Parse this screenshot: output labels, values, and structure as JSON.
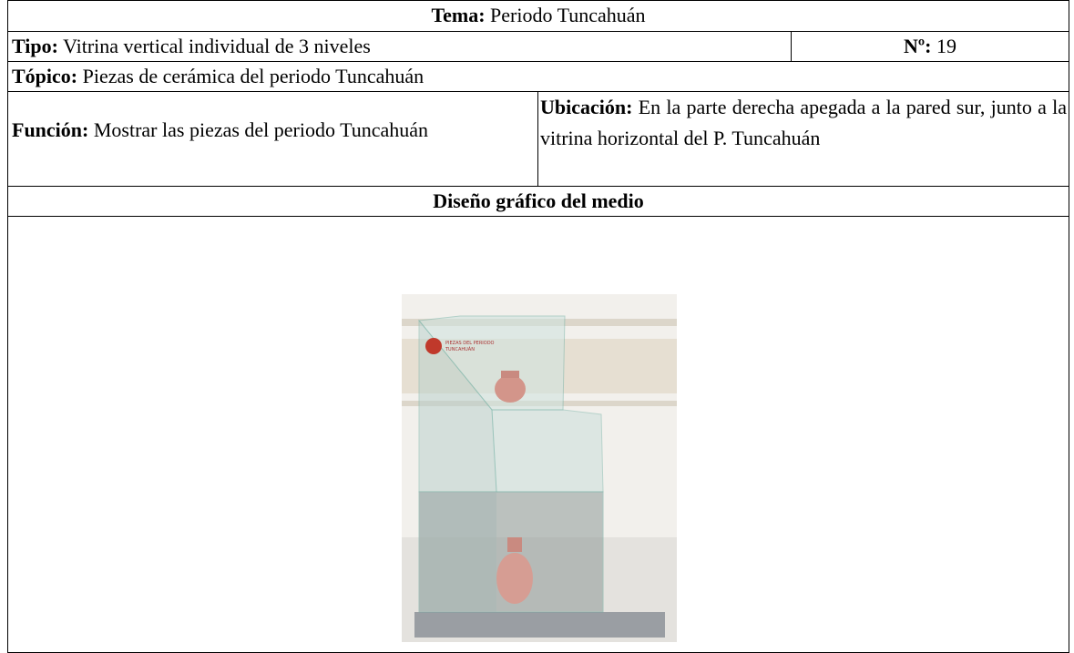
{
  "tema": {
    "label": "Tema:",
    "text": "Periodo Tuncahuán"
  },
  "tipo": {
    "label": "Tipo:",
    "text": "Vitrina vertical individual de 3 niveles"
  },
  "numero": {
    "label": "Nº:",
    "text": "19"
  },
  "topico": {
    "label": "Tópico:",
    "text": "Piezas de cerámica del periodo Tuncahuán"
  },
  "funcion": {
    "label": "Función:",
    "text": "Mostrar las piezas del periodo Tuncahuán"
  },
  "ubicacion": {
    "label": "Ubicación:",
    "text": "En la parte derecha apegada a la pared sur, junto a la vitrina horizontal del P. Tuncahuán"
  },
  "diseno": {
    "title": "Diseño gráfico del medio"
  },
  "image": {
    "label_lines": [
      "PIEZAS DEL PERIODO",
      "TUNCAHUÁN"
    ]
  }
}
